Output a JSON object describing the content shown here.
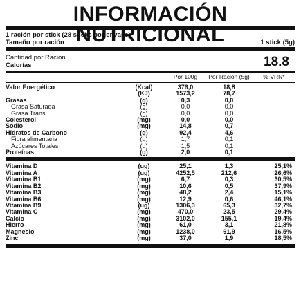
{
  "title": "INFORMACIÓN NUTRICIONAL",
  "serving": {
    "servings_line": "1 ración por stick (28 sticks por envase)",
    "size_label": "Tamaño por ración",
    "size_value": "1 stick (5g)"
  },
  "calories": {
    "amount_label": "Cantidad por Ración",
    "label": "Calorías",
    "value": "18.8"
  },
  "headers": {
    "per100": "Por 100g",
    "perServing": "Por Ración (5g)",
    "vrn": "% VRN*"
  },
  "nutrients": [
    {
      "name": "Valor Energético",
      "unit": "(Kcal)",
      "per100": "376,0",
      "serving": "18,8",
      "style": "bold"
    },
    {
      "name": "",
      "unit": "(KJ)",
      "per100": "1573,2",
      "serving": "78,7",
      "style": "bold"
    },
    {
      "name": "Grasas",
      "unit": "(g)",
      "per100": "0,3",
      "serving": "0,0",
      "style": "bold"
    },
    {
      "name": "Grasa Saturada",
      "unit": "(g)",
      "per100": "0,0",
      "serving": "0,0",
      "style": "indent"
    },
    {
      "name": "Grasa Trans",
      "unit": "(g)",
      "per100": "0,0",
      "serving": "0,0",
      "style": "indent"
    },
    {
      "name": "Colesterol",
      "unit": "(mg)",
      "per100": "0,0",
      "serving": "0,0",
      "style": "bold"
    },
    {
      "name": "Sodio",
      "unit": "(mg)",
      "per100": "14,8",
      "serving": "0,7",
      "style": "bold"
    },
    {
      "name": "Hidratos de Carbono",
      "unit": "(g)",
      "per100": "92,4",
      "serving": "4,6",
      "style": "bold"
    },
    {
      "name": "Fibra alimentaria",
      "unit": "(g)",
      "per100": "1,7",
      "serving": "0,1",
      "style": "indent"
    },
    {
      "name": "Azúcares Totales",
      "unit": "(g)",
      "per100": "1,5",
      "serving": "0,1",
      "style": "indent"
    },
    {
      "name": "Proteínas",
      "unit": "(g)",
      "per100": "2,0",
      "serving": "0,1",
      "style": "bold"
    }
  ],
  "vitamins": [
    {
      "name": "Vitamina D",
      "unit": "(ug)",
      "per100": "25,1",
      "serving": "1,3",
      "vrn": "25,1%"
    },
    {
      "name": "Vitamina A",
      "unit": "(ug)",
      "per100": "4252,5",
      "serving": "212,6",
      "vrn": "26,6%"
    },
    {
      "name": "Vitamina B1",
      "unit": "(mg)",
      "per100": "6,7",
      "serving": "0,3",
      "vrn": "30,5%"
    },
    {
      "name": "Vitamina B2",
      "unit": "(mg)",
      "per100": "10,6",
      "serving": "0,5",
      "vrn": "37,9%"
    },
    {
      "name": "Vitamina B3",
      "unit": "(mg)",
      "per100": "48,2",
      "serving": "2,4",
      "vrn": "15,1%"
    },
    {
      "name": "Vitamina B6",
      "unit": "(mg)",
      "per100": "12,9",
      "serving": "0,6",
      "vrn": "46,1%"
    },
    {
      "name": "Vitamina B9",
      "unit": "(ug)",
      "per100": "1306,3",
      "serving": "65,3",
      "vrn": "32,7%"
    },
    {
      "name": "Vitamina C",
      "unit": "(mg)",
      "per100": "470,0",
      "serving": "23,5",
      "vrn": "29,4%"
    },
    {
      "name": "Calcio",
      "unit": "(mg)",
      "per100": "3102,0",
      "serving": "155,1",
      "vrn": "19,4%"
    },
    {
      "name": "Hierro",
      "unit": "(mg)",
      "per100": "61,0",
      "serving": "3,1",
      "vrn": "21,8%"
    },
    {
      "name": "Magnesio",
      "unit": "(mg)",
      "per100": "1238,0",
      "serving": "61,9",
      "vrn": "16,5%"
    },
    {
      "name": "Zinc",
      "unit": "(mg)",
      "per100": "37,0",
      "serving": "1,9",
      "vrn": "18,5%"
    }
  ]
}
